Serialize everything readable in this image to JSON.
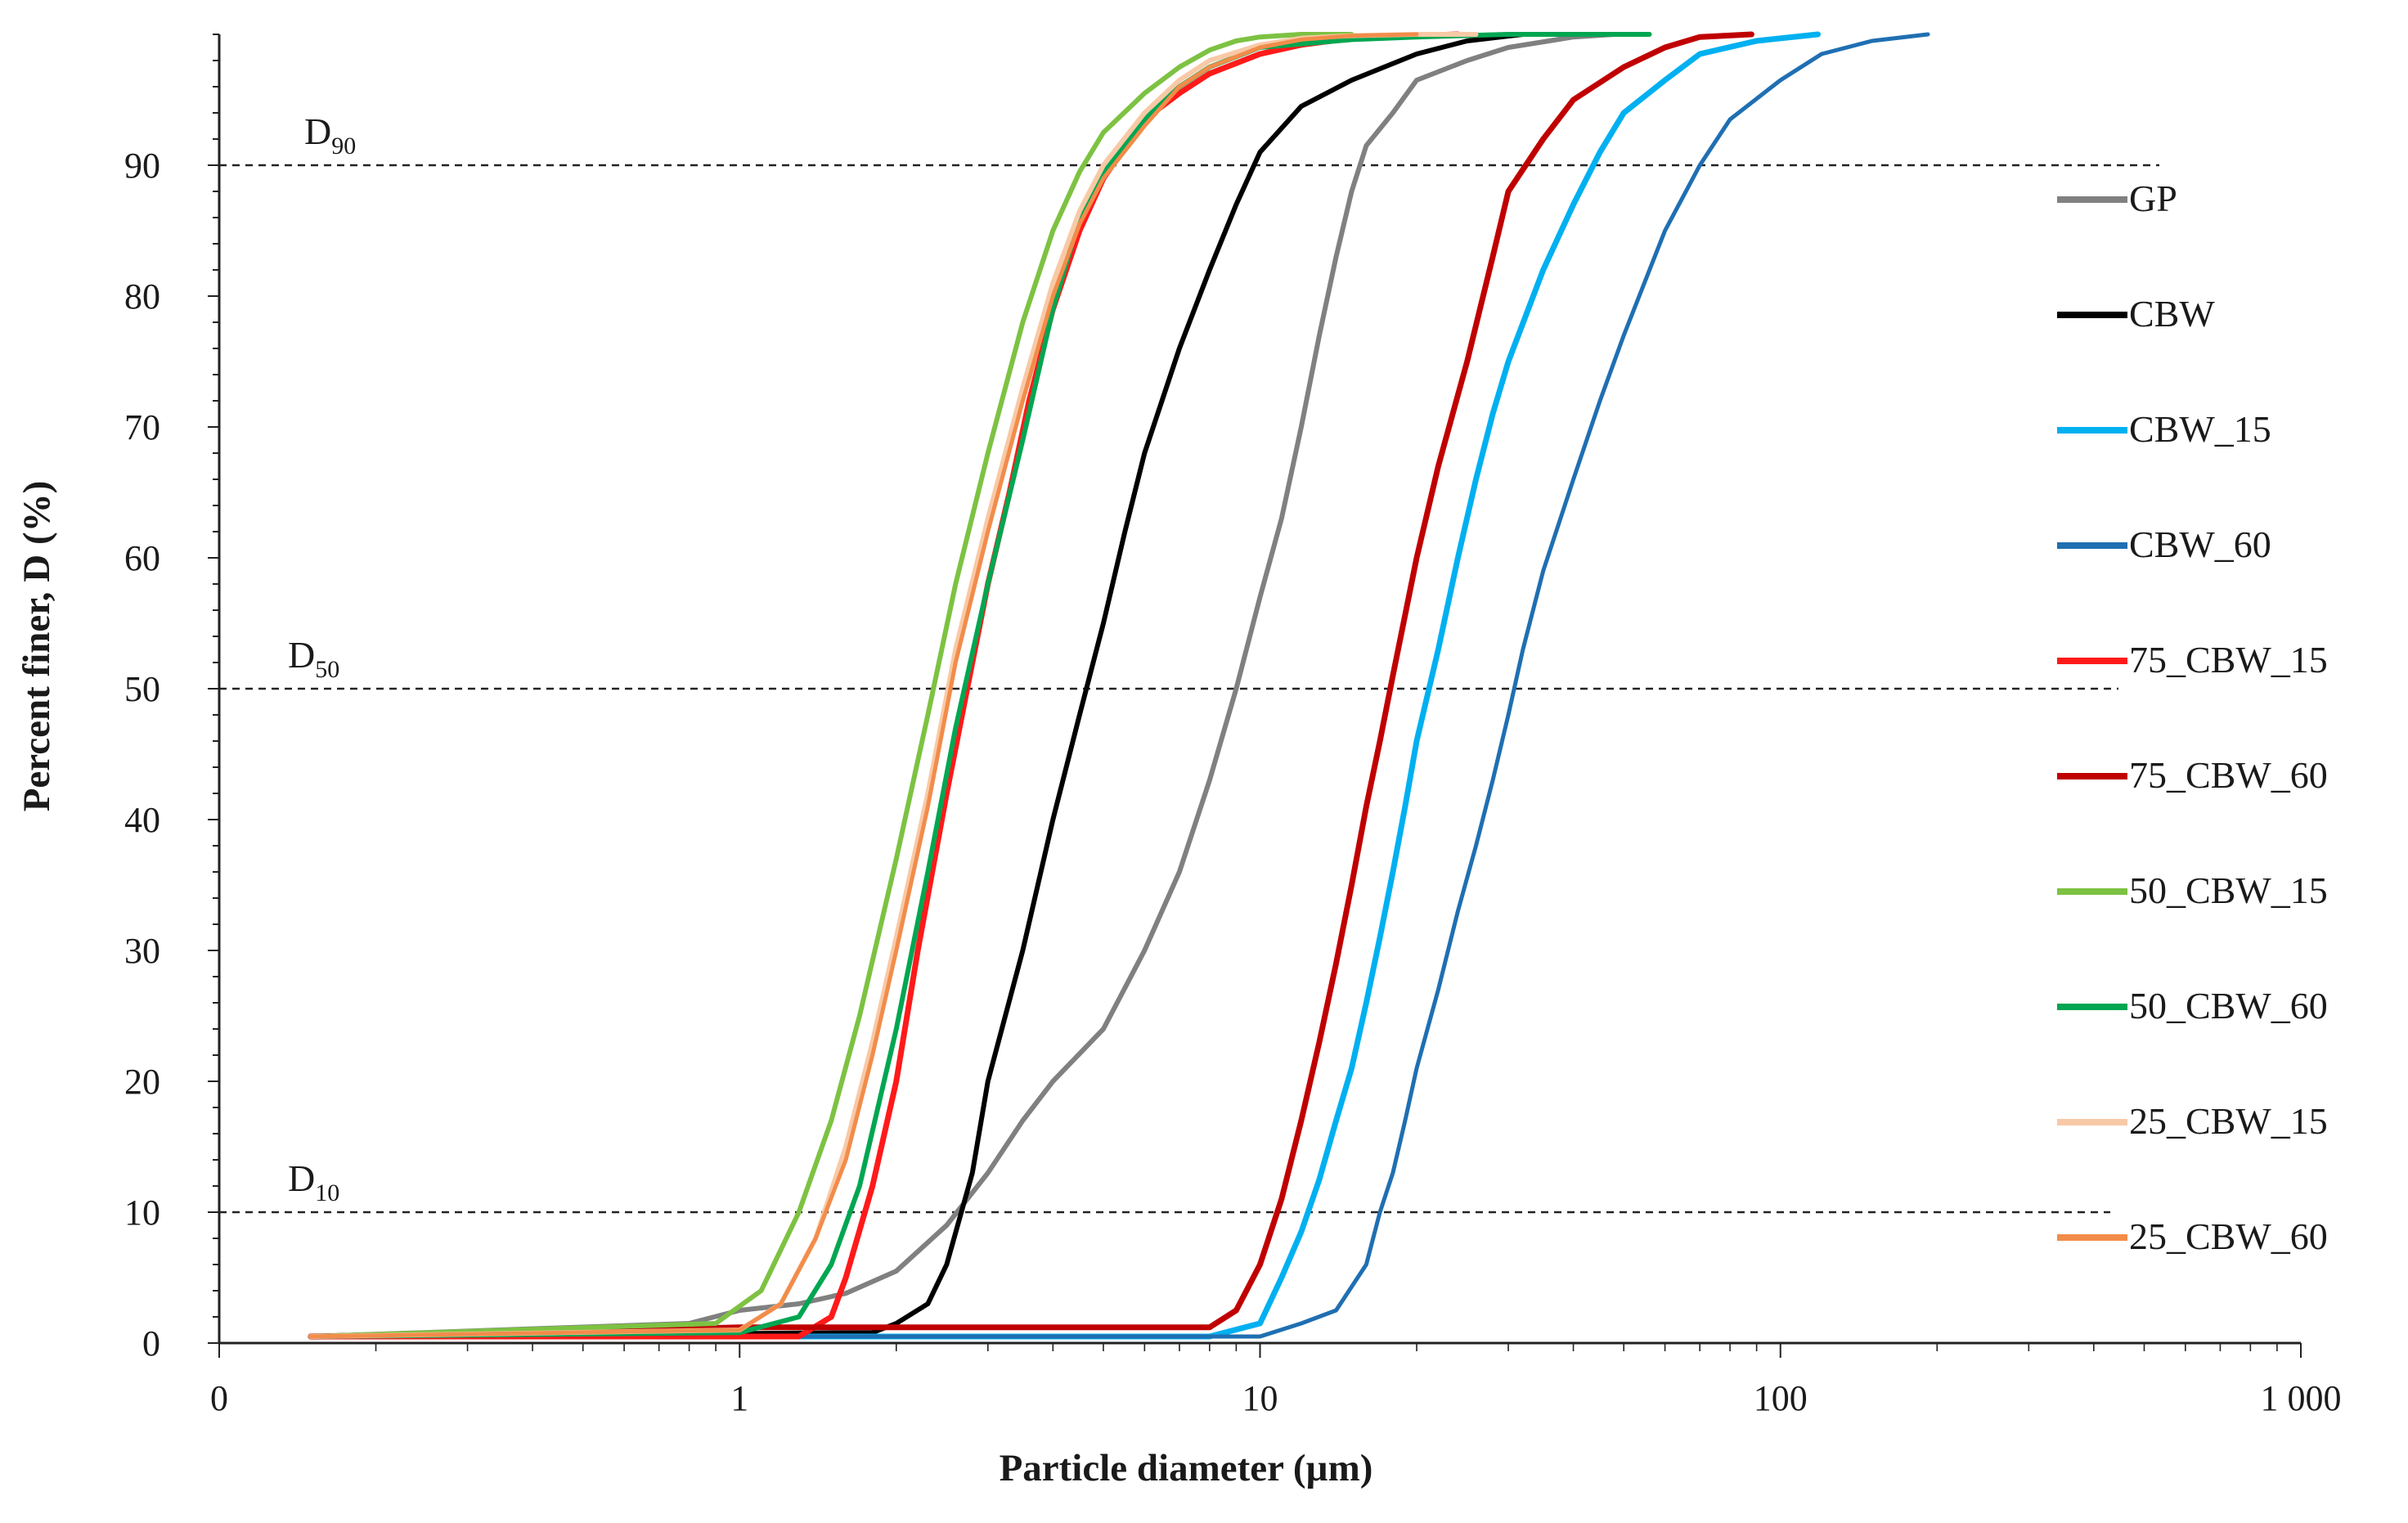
{
  "chart_data": {
    "type": "line",
    "title": "",
    "xlabel": "Particle diameter (µm)",
    "ylabel": "Percent finer, D (%)",
    "x_scale": "log",
    "xlim": [
      0.1,
      1000
    ],
    "ylim": [
      0,
      100
    ],
    "x_ticks": [
      {
        "value": 0.1,
        "label": "0"
      },
      {
        "value": 1,
        "label": "1"
      },
      {
        "value": 10,
        "label": "10"
      },
      {
        "value": 100,
        "label": "100"
      },
      {
        "value": 1000,
        "label": "1 000"
      }
    ],
    "y_ticks": [
      0,
      10,
      20,
      30,
      40,
      50,
      60,
      70,
      80,
      90
    ],
    "reference_lines": [
      {
        "y": 90,
        "label": "D",
        "sub": "90"
      },
      {
        "y": 50,
        "label": "D",
        "sub": "50"
      },
      {
        "y": 10,
        "label": "D",
        "sub": "10"
      }
    ],
    "legend_position": "right",
    "series": [
      {
        "name": "GP",
        "color": "#808080",
        "width": 6,
        "x": [
          0.15,
          0.8,
          1.0,
          1.3,
          1.6,
          2.0,
          2.5,
          3.0,
          3.5,
          4.0,
          5.0,
          6.0,
          7.0,
          8.0,
          9.0,
          10.0,
          11.0,
          12.0,
          13.0,
          14.0,
          15.0,
          16.0,
          18.0,
          20.0,
          25.0,
          30.0,
          40.0,
          48.0
        ],
        "y": [
          0.5,
          1.5,
          2.5,
          3.0,
          3.8,
          5.5,
          9.0,
          13.0,
          17.0,
          20.0,
          24.0,
          30.0,
          36.0,
          43.0,
          50.0,
          57.0,
          63.0,
          70.0,
          77.0,
          83.0,
          88.0,
          91.5,
          94.0,
          96.5,
          98.0,
          99.0,
          99.8,
          100
        ]
      },
      {
        "name": "CBW",
        "color": "#000000",
        "width": 6,
        "x": [
          0.15,
          1.8,
          2.0,
          2.3,
          2.5,
          2.8,
          3.0,
          3.5,
          4.0,
          4.5,
          5.0,
          5.5,
          6.0,
          7.0,
          8.0,
          9.0,
          10.0,
          12.0,
          15.0,
          20.0,
          25.0,
          32.0
        ],
        "y": [
          0.5,
          0.8,
          1.5,
          3.0,
          6.0,
          13.0,
          20.0,
          30.0,
          40.0,
          48.0,
          55.0,
          62.0,
          68.0,
          76.0,
          82.0,
          87.0,
          91.0,
          94.5,
          96.5,
          98.5,
          99.5,
          100
        ]
      },
      {
        "name": "CBW_15",
        "color": "#00B0F0",
        "width": 7,
        "x": [
          0.15,
          8.0,
          10.0,
          11.0,
          12.0,
          13.0,
          14.0,
          15.0,
          16.0,
          17.0,
          18.0,
          19.0,
          20.0,
          22.0,
          24.0,
          26.0,
          28.0,
          30.0,
          35.0,
          40.0,
          45.0,
          50.0,
          60.0,
          70.0,
          90.0,
          118.0
        ],
        "y": [
          0.5,
          0.5,
          1.5,
          5.0,
          8.5,
          12.5,
          17.0,
          21.0,
          26.0,
          31.0,
          36.0,
          41.0,
          46.0,
          53.0,
          60.0,
          66.0,
          71.0,
          75.0,
          82.0,
          87.0,
          91.0,
          94.0,
          96.5,
          98.5,
          99.5,
          100
        ]
      },
      {
        "name": "CBW_60",
        "color": "#1F6FB2",
        "width": 5,
        "x": [
          0.15,
          10.0,
          12.0,
          14.0,
          16.0,
          17.0,
          18.0,
          19.0,
          20.0,
          22.0,
          24.0,
          26.0,
          28.0,
          30.0,
          32.0,
          35.0,
          40.0,
          45.0,
          50.0,
          60.0,
          70.0,
          80.0,
          100.0,
          120.0,
          150.0,
          192.0
        ],
        "y": [
          0.5,
          0.5,
          1.5,
          2.5,
          6.0,
          10.0,
          13.0,
          17.0,
          21.0,
          27.0,
          33.0,
          38.0,
          43.0,
          48.0,
          53.0,
          59.0,
          66.0,
          72.0,
          77.0,
          85.0,
          90.0,
          93.5,
          96.5,
          98.5,
          99.5,
          100
        ]
      },
      {
        "name": "75_CBW_15",
        "color": "#FF1A1A",
        "width": 7,
        "x": [
          0.15,
          1.3,
          1.5,
          1.6,
          1.8,
          2.0,
          2.2,
          2.5,
          2.8,
          3.0,
          3.3,
          3.6,
          4.0,
          4.5,
          5.0,
          6.0,
          7.0,
          8.0,
          10.0,
          12.0,
          15.0,
          20.0,
          24.0
        ],
        "y": [
          0.5,
          0.5,
          2.0,
          5.0,
          12.0,
          20.0,
          30.0,
          42.0,
          52.0,
          58.0,
          65.0,
          72.0,
          79.0,
          85.0,
          89.0,
          93.5,
          95.5,
          97.0,
          98.5,
          99.2,
          99.7,
          99.9,
          100
        ]
      },
      {
        "name": "75_CBW_60",
        "color": "#C00000",
        "width": 7,
        "x": [
          0.15,
          0.6,
          1.0,
          2.0,
          5.0,
          8.0,
          9.0,
          10.0,
          11.0,
          12.0,
          13.0,
          14.0,
          15.0,
          16.0,
          17.0,
          18.0,
          20.0,
          22.0,
          25.0,
          28.0,
          30.0,
          35.0,
          40.0,
          50.0,
          60.0,
          70.0,
          88.0
        ],
        "y": [
          0.5,
          1.0,
          1.2,
          1.2,
          1.2,
          1.2,
          2.5,
          6.0,
          11.0,
          17.0,
          23.0,
          29.0,
          35.0,
          41.0,
          46.0,
          51.0,
          60.0,
          67.0,
          75.0,
          83.0,
          88.0,
          92.0,
          95.0,
          97.5,
          99.0,
          99.8,
          100
        ]
      },
      {
        "name": "50_CBW_15",
        "color": "#7DC242",
        "width": 6,
        "x": [
          0.15,
          0.9,
          1.1,
          1.3,
          1.5,
          1.7,
          2.0,
          2.3,
          2.6,
          3.0,
          3.5,
          4.0,
          4.5,
          5.0,
          6.0,
          7.0,
          8.0,
          9.0,
          10.0,
          12.0,
          15.0
        ],
        "y": [
          0.5,
          1.5,
          4.0,
          10.0,
          17.0,
          25.0,
          37.0,
          48.0,
          58.0,
          68.0,
          78.0,
          85.0,
          89.5,
          92.5,
          95.5,
          97.5,
          98.8,
          99.5,
          99.8,
          100,
          100
        ]
      },
      {
        "name": "50_CBW_60",
        "color": "#00A651",
        "width": 6,
        "x": [
          0.15,
          1.0,
          1.3,
          1.5,
          1.7,
          2.0,
          2.3,
          2.6,
          3.0,
          3.5,
          4.0,
          4.5,
          5.0,
          6.0,
          7.0,
          8.0,
          10.0,
          15.0,
          20.0,
          30.0,
          56.0
        ],
        "y": [
          0.5,
          0.8,
          2.0,
          6.0,
          12.0,
          24.0,
          36.0,
          47.0,
          58.0,
          69.0,
          79.0,
          86.0,
          89.5,
          93.5,
          96.0,
          97.5,
          99.0,
          99.6,
          99.8,
          100,
          100
        ]
      },
      {
        "name": "25_CBW_15",
        "color": "#F8C9A6",
        "width": 6,
        "x": [
          0.15,
          1.0,
          1.2,
          1.4,
          1.6,
          1.8,
          2.0,
          2.3,
          2.6,
          3.0,
          3.5,
          4.0,
          4.5,
          5.0,
          6.0,
          7.0,
          8.0,
          10.0,
          12.0,
          15.0,
          20.0,
          26.0
        ],
        "y": [
          0.5,
          1.0,
          3.0,
          8.0,
          15.0,
          23.0,
          31.0,
          42.0,
          53.0,
          63.0,
          73.0,
          81.0,
          86.5,
          90.0,
          94.0,
          96.5,
          98.0,
          99.2,
          99.7,
          99.9,
          100,
          100
        ]
      },
      {
        "name": "25_CBW_60",
        "color": "#F28C4A",
        "width": 5,
        "x": [
          0.15,
          1.0,
          1.2,
          1.4,
          1.6,
          1.8,
          2.0,
          2.3,
          2.6,
          3.0,
          3.5,
          4.0,
          4.5,
          5.0,
          6.0,
          7.0,
          8.0,
          10.0,
          12.0,
          15.0,
          20.0
        ],
        "y": [
          0.5,
          1.0,
          3.0,
          8.0,
          14.0,
          22.0,
          30.0,
          41.0,
          52.0,
          62.0,
          72.0,
          80.0,
          85.5,
          89.0,
          93.0,
          96.0,
          97.5,
          99.0,
          99.6,
          99.9,
          100
        ]
      }
    ]
  }
}
